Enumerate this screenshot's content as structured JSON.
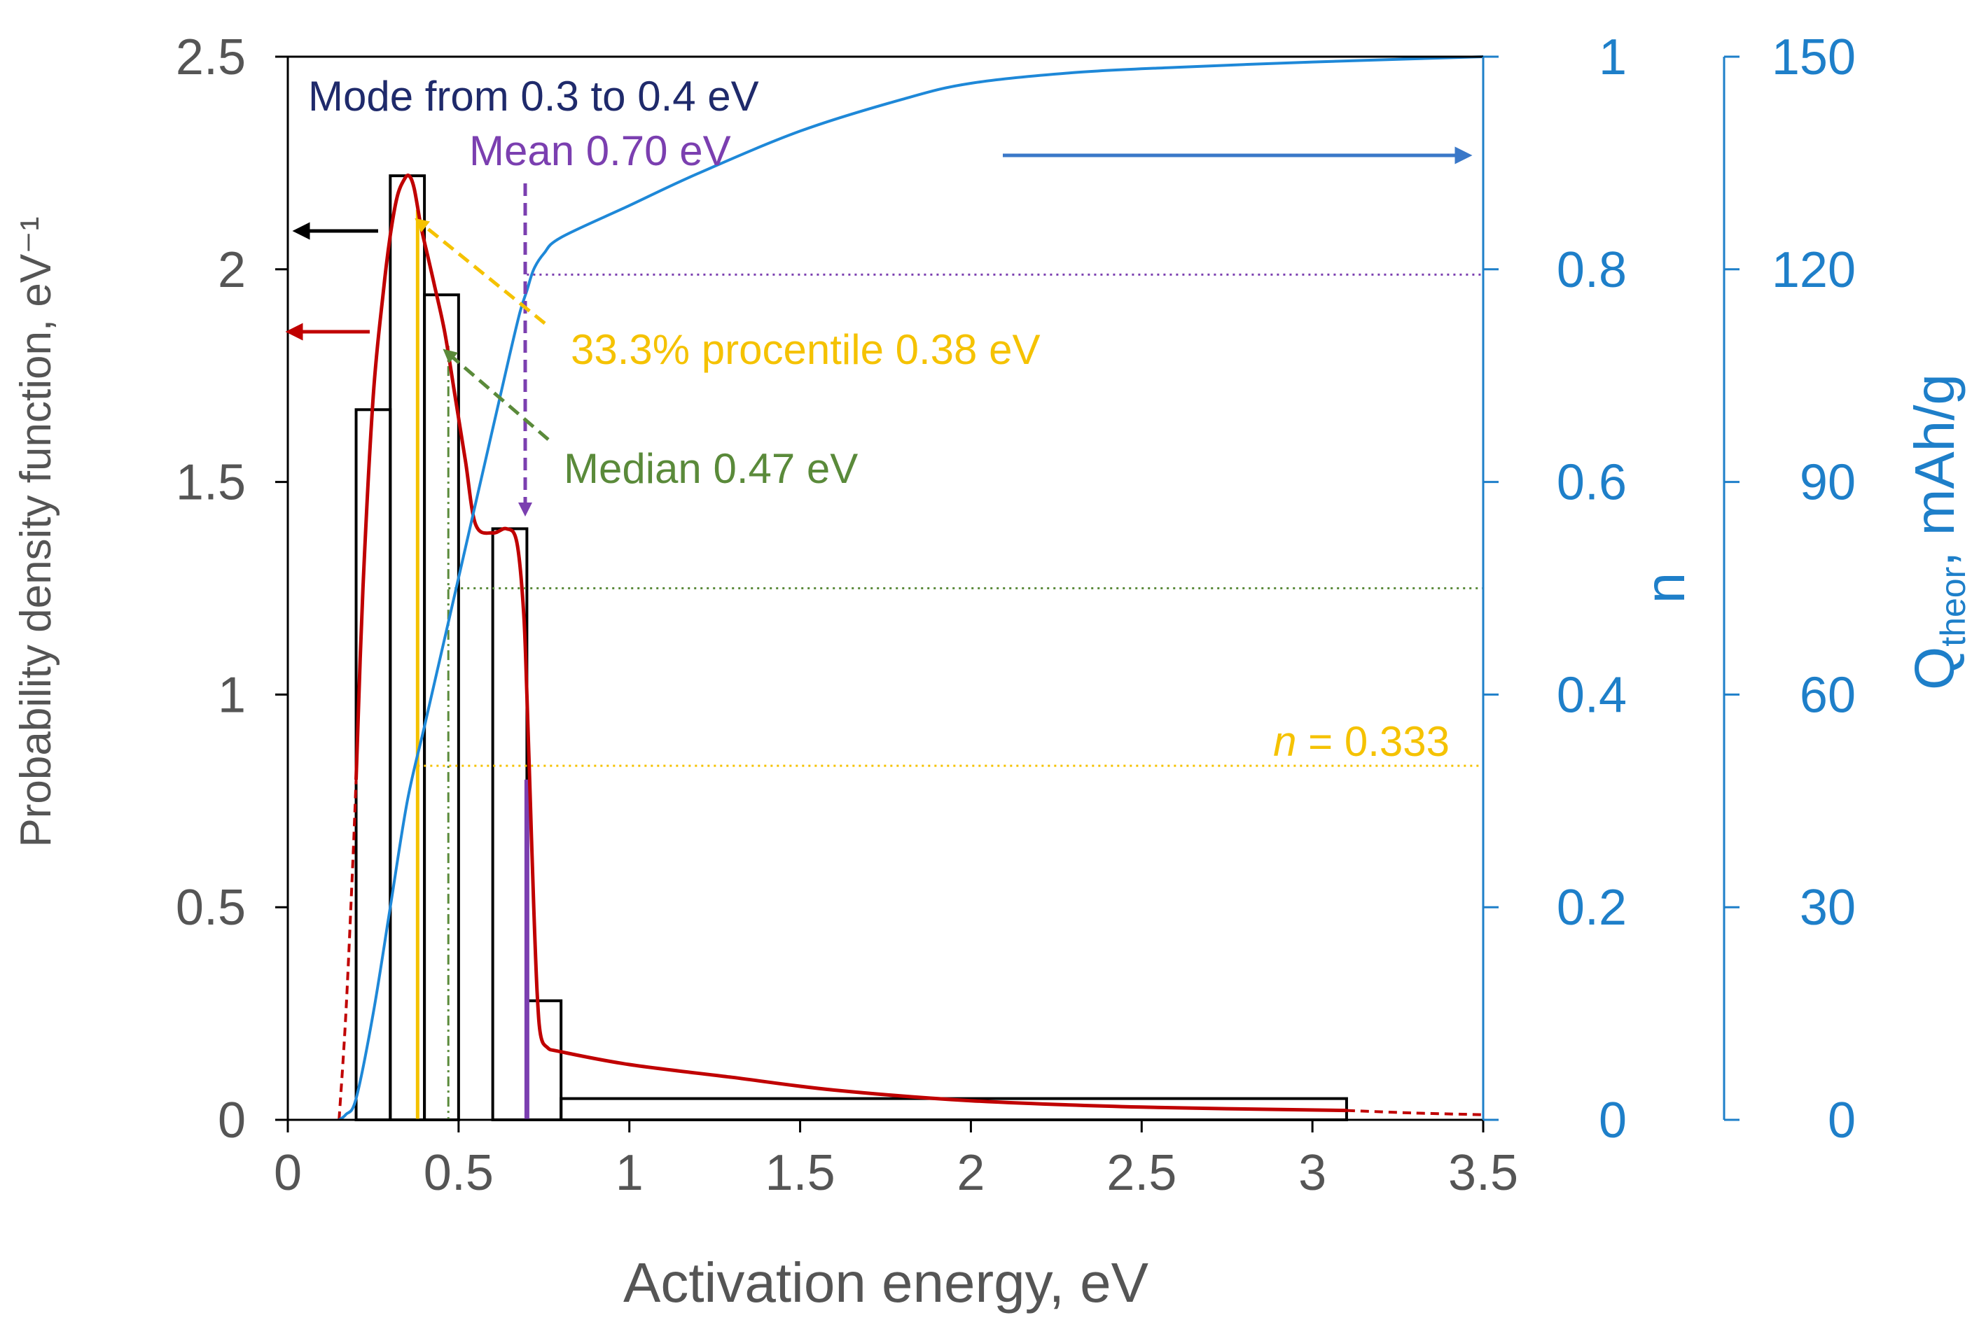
{
  "chart_data": {
    "type": "bar",
    "x_axis": {
      "label": "Activation energy, eV",
      "min": 0,
      "max": 3.5,
      "ticks": [
        0,
        0.5,
        1,
        1.5,
        2,
        2.5,
        3,
        3.5
      ],
      "tick_labels": [
        "0",
        "0.5",
        "1",
        "1.5",
        "2",
        "2.5",
        "3",
        "3.5"
      ]
    },
    "y_left": {
      "label": "Probability density function, eV⁻¹",
      "min": 0,
      "max": 2.5,
      "ticks": [
        0,
        0.5,
        1,
        1.5,
        2,
        2.5
      ],
      "tick_labels": [
        "0",
        "0.5",
        "1",
        "1.5",
        "2",
        "2.5"
      ]
    },
    "y_right_n": {
      "label": "n",
      "min": 0,
      "max": 1,
      "ticks": [
        0,
        0.2,
        0.4,
        0.6,
        0.8,
        1
      ],
      "tick_labels": [
        "0",
        "0.2",
        "0.4",
        "0.6",
        "0.8",
        "1"
      ]
    },
    "y_right_q": {
      "label_main": "Q",
      "label_sub": "theor",
      "label_rest": ", mAh/g",
      "min": 0,
      "max": 150,
      "ticks": [
        0,
        30,
        60,
        90,
        120,
        150
      ],
      "tick_labels": [
        "0",
        "30",
        "60",
        "90",
        "120",
        "150"
      ]
    },
    "histogram": [
      {
        "x0": 0.2,
        "x1": 0.3,
        "value": 1.67
      },
      {
        "x0": 0.3,
        "x1": 0.4,
        "value": 2.22
      },
      {
        "x0": 0.4,
        "x1": 0.5,
        "value": 1.94
      },
      {
        "x0": 0.6,
        "x1": 0.7,
        "value": 1.39
      },
      {
        "x0": 0.7,
        "x1": 0.8,
        "value": 0.28
      },
      {
        "x0": 0.8,
        "x1": 3.1,
        "value": 0.05
      }
    ],
    "pdf_curve": {
      "x": [
        0.2,
        0.22,
        0.25,
        0.28,
        0.3,
        0.32,
        0.34,
        0.355,
        0.37,
        0.39,
        0.41,
        0.43,
        0.46,
        0.49,
        0.52,
        0.55,
        0.6,
        0.64,
        0.67,
        0.69,
        0.7,
        0.71,
        0.72,
        0.73,
        0.74,
        0.76,
        0.8,
        1.0,
        1.3,
        1.6,
        2.0,
        2.5,
        3.1
      ],
      "y": [
        0.8,
        1.25,
        1.7,
        1.95,
        2.08,
        2.17,
        2.21,
        2.22,
        2.19,
        2.1,
        2.03,
        1.96,
        1.85,
        1.7,
        1.55,
        1.4,
        1.38,
        1.39,
        1.36,
        1.2,
        1.0,
        0.75,
        0.5,
        0.3,
        0.2,
        0.17,
        0.16,
        0.13,
        0.1,
        0.07,
        0.045,
        0.03,
        0.022
      ]
    },
    "pdf_dashed_left": {
      "x": [
        0.15,
        0.17,
        0.19,
        0.2
      ],
      "y": [
        0.0,
        0.25,
        0.6,
        0.8
      ]
    },
    "pdf_dashed_right": {
      "x": [
        3.1,
        3.3,
        3.5
      ],
      "y": [
        0.022,
        0.016,
        0.012
      ]
    },
    "n_curve": {
      "x": [
        0.15,
        0.17,
        0.2,
        0.25,
        0.3,
        0.35,
        0.4,
        0.45,
        0.5,
        0.55,
        0.6,
        0.65,
        0.68,
        0.7,
        0.72,
        0.75,
        0.8,
        1.0,
        1.2,
        1.5,
        1.8,
        2.0,
        2.3,
        2.6,
        3.0,
        3.3,
        3.5
      ],
      "y": [
        0.0,
        0.005,
        0.02,
        0.1,
        0.2,
        0.3,
        0.37,
        0.44,
        0.51,
        0.58,
        0.65,
        0.72,
        0.76,
        0.78,
        0.8,
        0.815,
        0.83,
        0.86,
        0.89,
        0.93,
        0.96,
        0.975,
        0.985,
        0.99,
        0.995,
        0.998,
        1.0
      ]
    },
    "reference_lines": {
      "mode_x": 0.38,
      "median_x": 0.47,
      "mean_x": 0.7,
      "mean_top_pdf": 0.8,
      "n_mean": 0.795,
      "n_median": 0.5,
      "n_percentile": 0.333
    },
    "annotations": {
      "mode": "Mode from 0.3 to 0.4 eV",
      "mean": "Mean 0.70 eV",
      "percentile": "33.3% procentile 0.38 eV",
      "median": "Median 0.47 eV",
      "n_label_italic": "n",
      "n_label_rest": " = 0.333"
    },
    "colors": {
      "bars": "#000000",
      "pdf": "#c00000",
      "n": "#1e88d8",
      "mode": "#1f2a6b",
      "mean": "#7b3fb0",
      "percentile": "#f5c200",
      "median": "#5a8a3a",
      "axis_left": "#555555",
      "axis_right": "#1e7fc9",
      "right_arrow": "#3a78c8"
    }
  }
}
